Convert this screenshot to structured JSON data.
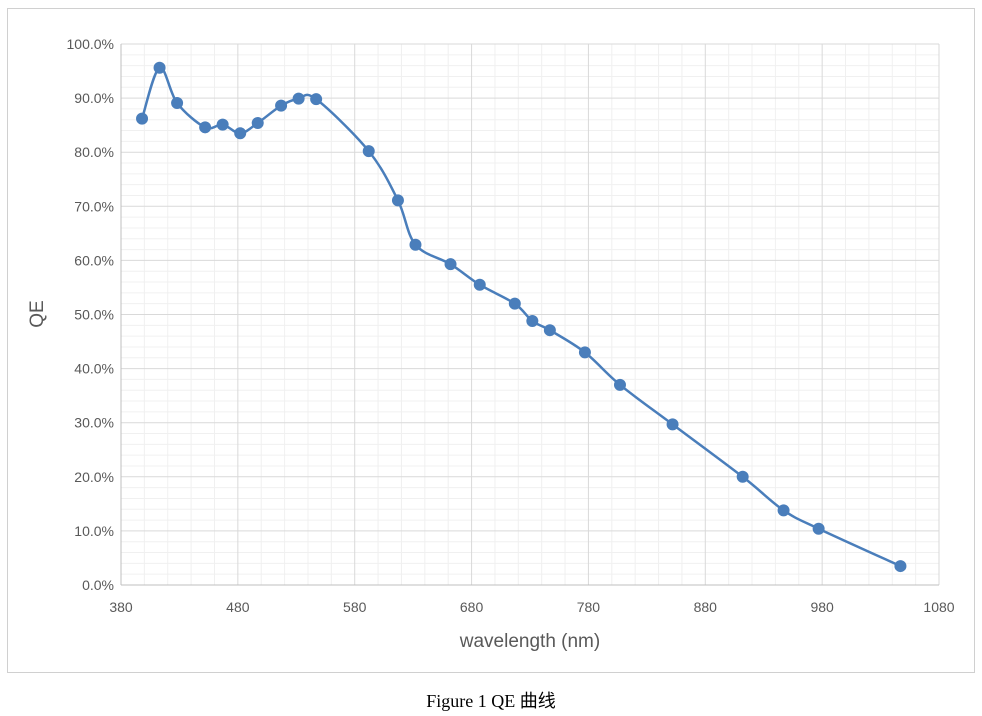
{
  "caption": "Figure 1 QE 曲线",
  "colors": {
    "line": "#4a7ebb",
    "marker": "#4a7ebb",
    "major_grid": "#d9d9d9",
    "minor_grid": "#f0f0f0",
    "axis": "#bfbfbf",
    "text": "#595959"
  },
  "chart_data": {
    "type": "line",
    "title": "",
    "xlabel": "wavelength (nm)",
    "ylabel": "QE",
    "xlim": [
      380,
      1080
    ],
    "ylim": [
      0,
      1.0
    ],
    "x_ticks": [
      380,
      480,
      580,
      680,
      780,
      880,
      980,
      1080
    ],
    "x_tick_labels": [
      "380",
      "480",
      "580",
      "680",
      "780",
      "880",
      "980",
      "1080"
    ],
    "y_ticks": [
      0,
      0.1,
      0.2,
      0.3,
      0.4,
      0.5,
      0.6,
      0.7,
      0.8,
      0.9,
      1.0
    ],
    "y_tick_labels": [
      "0.0%",
      "10.0%",
      "20.0%",
      "30.0%",
      "40.0%",
      "50.0%",
      "60.0%",
      "70.0%",
      "80.0%",
      "90.0%",
      "100.0%"
    ],
    "grid": true,
    "legend": "none",
    "smooth": true,
    "series": [
      {
        "x": [
          398,
          413,
          428,
          452,
          467,
          482,
          497,
          517,
          532,
          547,
          592,
          617,
          632,
          662,
          687,
          717,
          732,
          747,
          777,
          807,
          852,
          912,
          947,
          977,
          1047
        ],
        "y": [
          0.862,
          0.956,
          0.891,
          0.846,
          0.851,
          0.835,
          0.854,
          0.886,
          0.899,
          0.898,
          0.802,
          0.711,
          0.629,
          0.593,
          0.555,
          0.52,
          0.488,
          0.471,
          0.43,
          0.37,
          0.297,
          0.2,
          0.138,
          0.104,
          0.035
        ]
      }
    ]
  }
}
